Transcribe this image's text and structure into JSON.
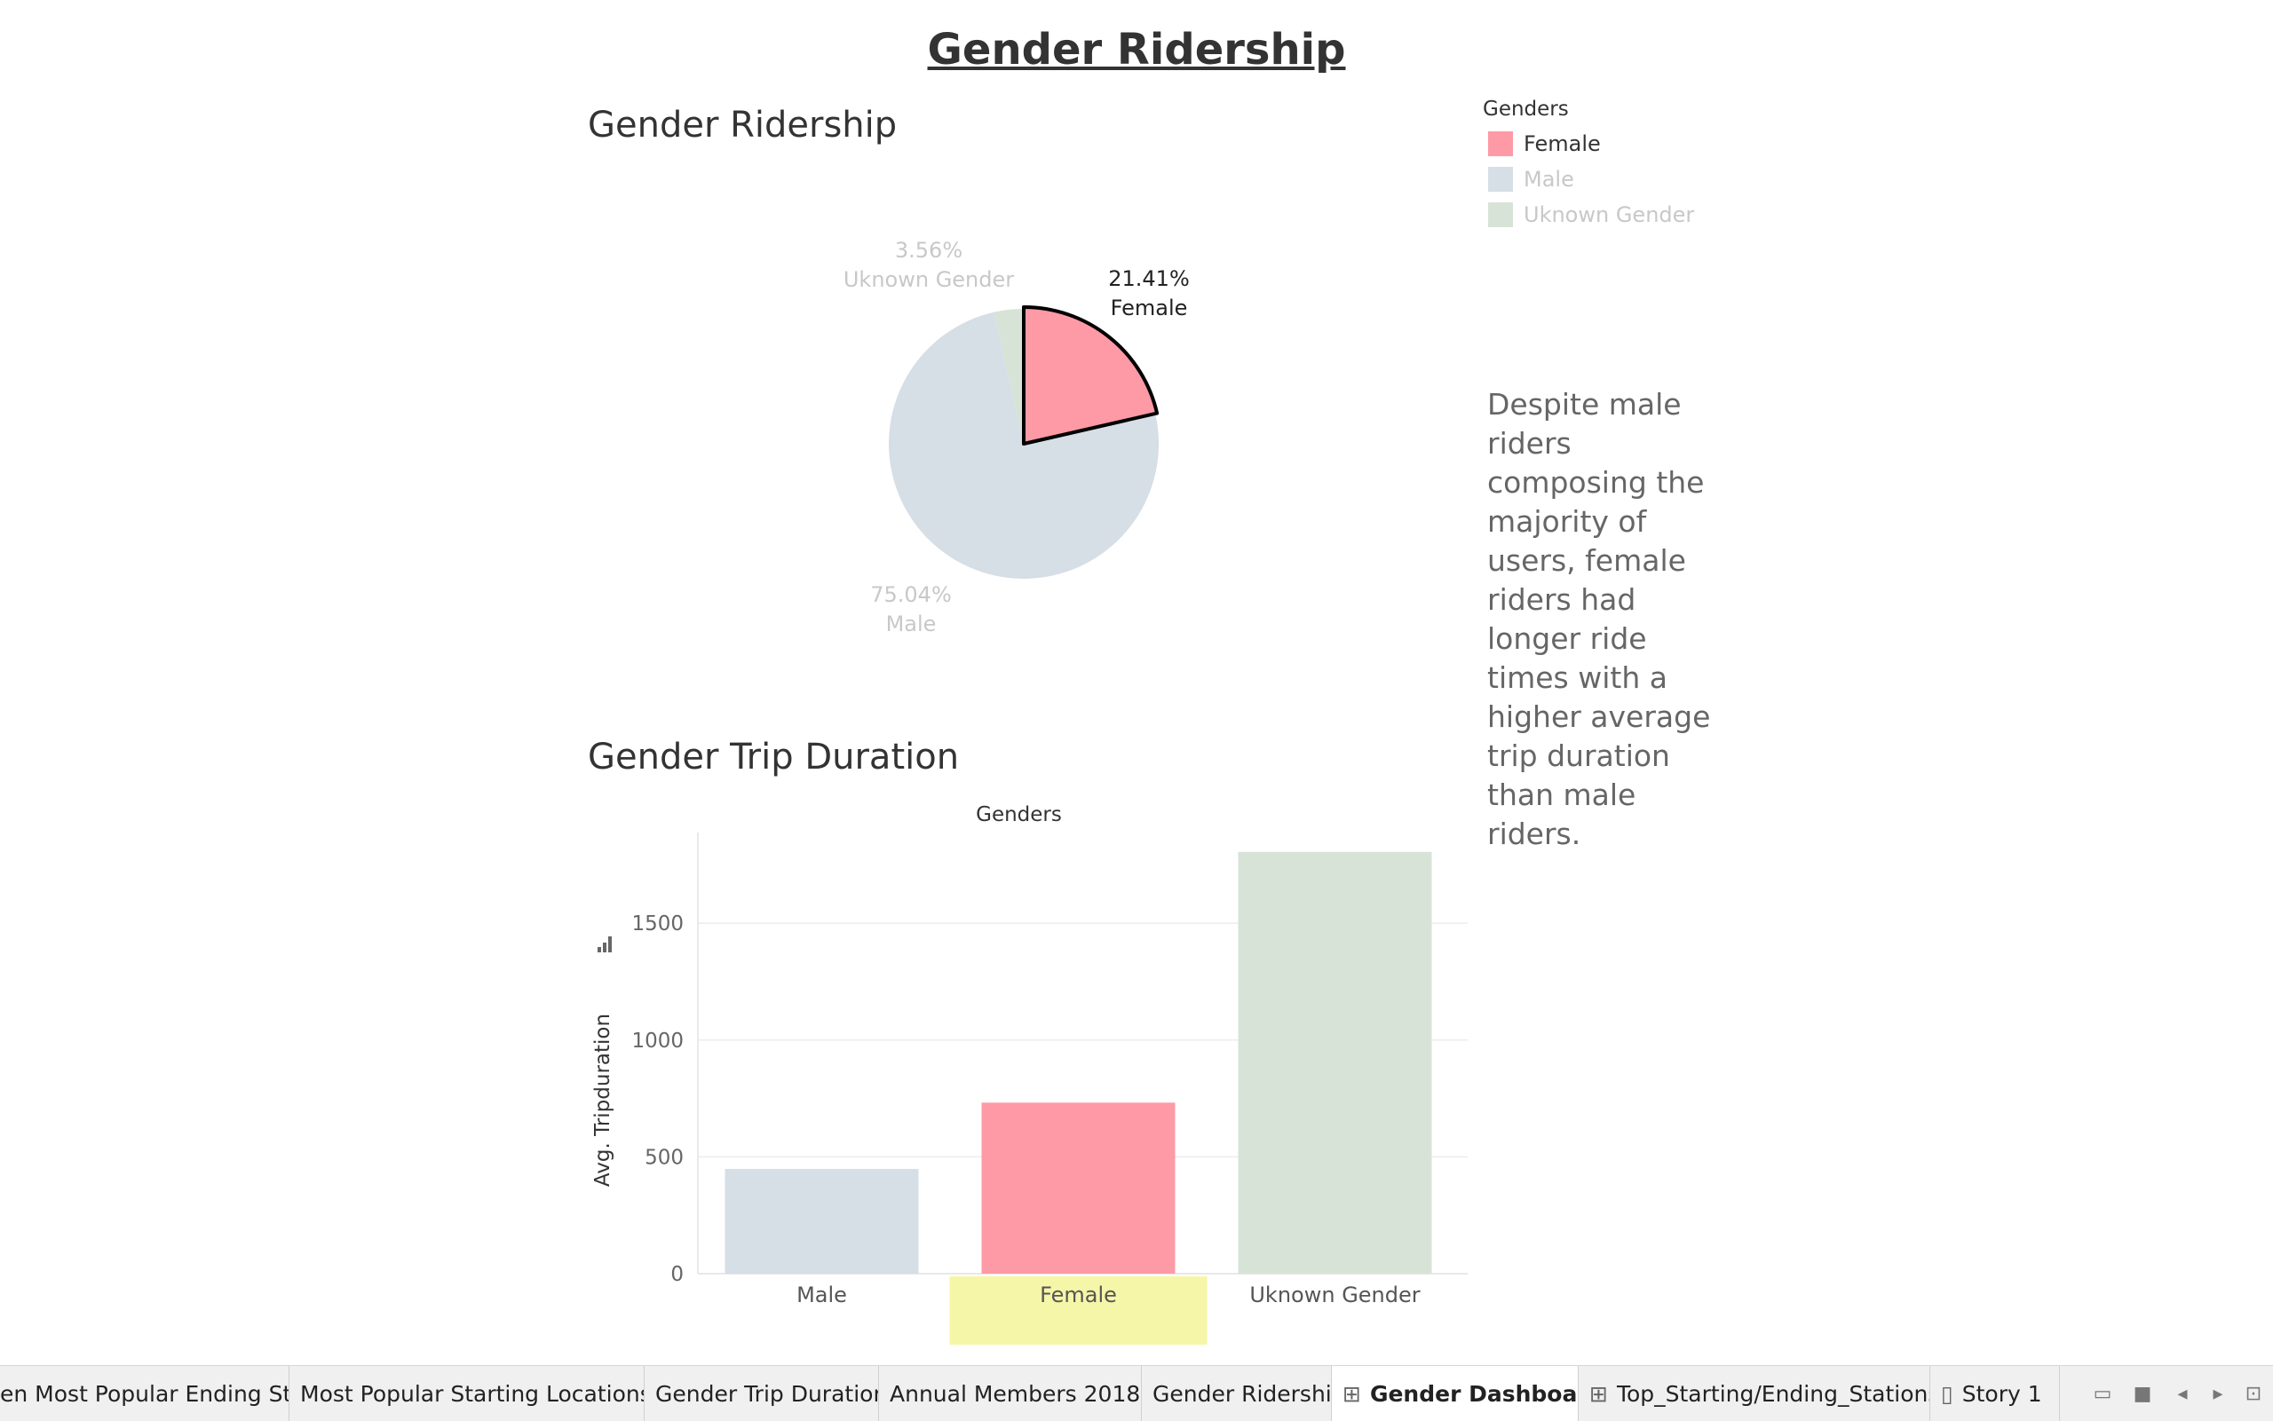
{
  "dashboard": {
    "title": "Gender Ridership",
    "annotation": "Despite male riders composing the majority of users, female riders had longer ride times with a higher average trip duration than male riders."
  },
  "legend": {
    "title": "Genders",
    "items": [
      {
        "label": "Female",
        "color": "#fe9aa5"
      },
      {
        "label": "Male",
        "color": "#d6dee6"
      },
      {
        "label": "Uknown Gender",
        "color": "#d7e3d6"
      }
    ]
  },
  "colors": {
    "female": "#fe9aa5",
    "male": "#d6dee6",
    "unknown": "#d7e3d6",
    "highlight": "#f6f6a8"
  },
  "chart_data": [
    {
      "type": "pie",
      "title": "Gender Ridership",
      "slices": [
        {
          "label": "Female",
          "value": 21.41,
          "display": "21.41%",
          "selected": true
        },
        {
          "label": "Male",
          "value": 75.04,
          "display": "75.04%",
          "selected": false
        },
        {
          "label": "Uknown Gender",
          "value": 3.56,
          "display": "3.56%",
          "selected": false
        }
      ]
    },
    {
      "type": "bar",
      "title": "Gender Trip Duration",
      "header": "Genders",
      "categories": [
        "Male",
        "Female",
        "Uknown Gender"
      ],
      "values": [
        448,
        732,
        1805
      ],
      "ylabel": "Avg. Tripduration",
      "ylim": [
        0,
        1850
      ],
      "yticks": [
        0,
        500,
        1000,
        1500
      ],
      "highlighted_category": "Female"
    }
  ],
  "tabs": [
    {
      "label": "en Most Popular Ending St...",
      "icon": "",
      "active": false
    },
    {
      "label": "Most Popular Starting Locations",
      "icon": "",
      "active": false
    },
    {
      "label": "Gender Trip Duration",
      "icon": "",
      "active": false
    },
    {
      "label": "Annual Members 2018",
      "icon": "",
      "active": false
    },
    {
      "label": "Gender Ridership",
      "icon": "",
      "active": false
    },
    {
      "label": "Gender Dashboard",
      "icon": "dashboard-icon",
      "active": true
    },
    {
      "label": "Top_Starting/Ending_Stations",
      "icon": "dashboard-icon",
      "active": false
    },
    {
      "label": "Story 1",
      "icon": "story-icon",
      "active": false
    }
  ]
}
